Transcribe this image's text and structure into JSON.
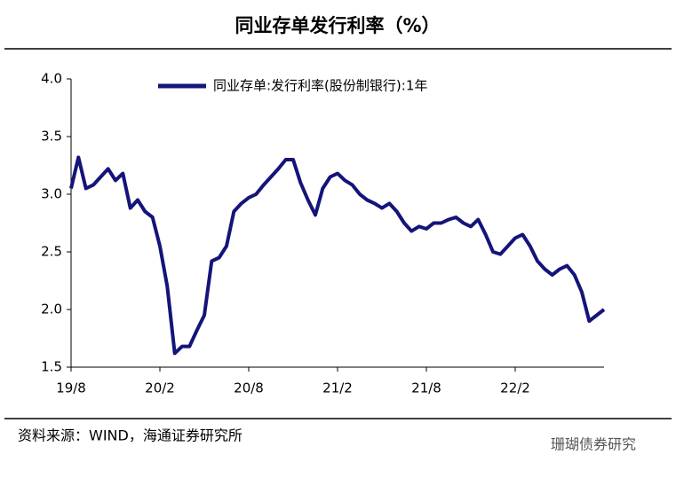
{
  "chart_data": {
    "type": "line",
    "title": "同业存单发行利率（%）",
    "source": "资料来源：WIND，海通证券研究所",
    "watermark": "珊瑚债券研究",
    "categories": [
      "19/8",
      null,
      null,
      null,
      null,
      null,
      null,
      null,
      null,
      null,
      null,
      null,
      "20/2",
      null,
      null,
      null,
      null,
      null,
      null,
      null,
      null,
      null,
      null,
      null,
      "20/8",
      null,
      null,
      null,
      null,
      null,
      null,
      null,
      null,
      null,
      null,
      null,
      "21/2",
      null,
      null,
      null,
      null,
      null,
      null,
      null,
      null,
      null,
      null,
      null,
      "21/8",
      null,
      null,
      null,
      null,
      null,
      null,
      null,
      null,
      null,
      null,
      null,
      "22/2",
      null,
      null,
      null,
      null,
      null,
      null,
      null,
      null,
      null,
      null,
      null,
      null
    ],
    "series": [
      {
        "name": "同业存单:发行利率(股份制银行):1年",
        "color": "#14147a",
        "values": [
          3.05,
          3.32,
          3.05,
          3.08,
          3.15,
          3.22,
          3.12,
          3.18,
          2.88,
          2.95,
          2.85,
          2.8,
          2.55,
          2.2,
          1.62,
          1.68,
          1.68,
          1.82,
          1.95,
          2.42,
          2.45,
          2.55,
          2.85,
          2.92,
          2.97,
          3.0,
          3.08,
          3.15,
          3.22,
          3.3,
          3.3,
          3.1,
          2.95,
          2.82,
          3.05,
          3.15,
          3.18,
          3.12,
          3.08,
          3.0,
          2.95,
          2.92,
          2.88,
          2.92,
          2.85,
          2.75,
          2.68,
          2.72,
          2.7,
          2.75,
          2.75,
          2.78,
          2.8,
          2.75,
          2.72,
          2.78,
          2.65,
          2.5,
          2.48,
          2.55,
          2.62,
          2.65,
          2.55,
          2.42,
          2.35,
          2.3,
          2.35,
          2.38,
          2.3,
          2.15,
          1.9,
          1.95,
          2.0
        ]
      }
    ],
    "ylim": [
      1.5,
      4.0
    ],
    "yticks": [
      1.5,
      {
        "value": 2,
        "label": "2.0"
      },
      2.5,
      {
        "value": 3,
        "label": "3.0"
      },
      3.5,
      {
        "value": 4,
        "label": "4.0"
      }
    ],
    "legend": "top"
  }
}
